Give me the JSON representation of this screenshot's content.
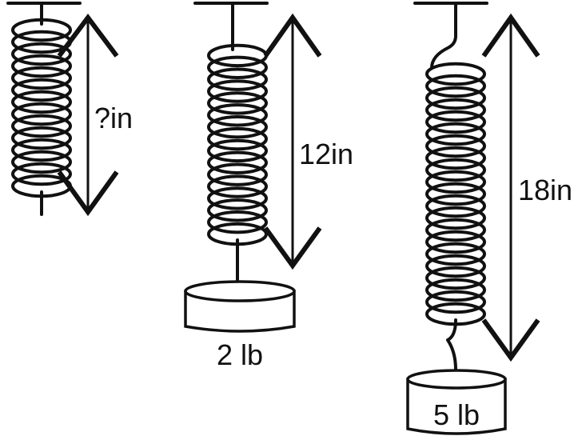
{
  "springs": [
    {
      "id": "unloaded",
      "length_label": "?in",
      "mass_label": ""
    },
    {
      "id": "two-pound",
      "length_label": "12in",
      "mass_label": "2 lb"
    },
    {
      "id": "five-pound",
      "length_label": "18in",
      "mass_label": "5 lb"
    }
  ]
}
